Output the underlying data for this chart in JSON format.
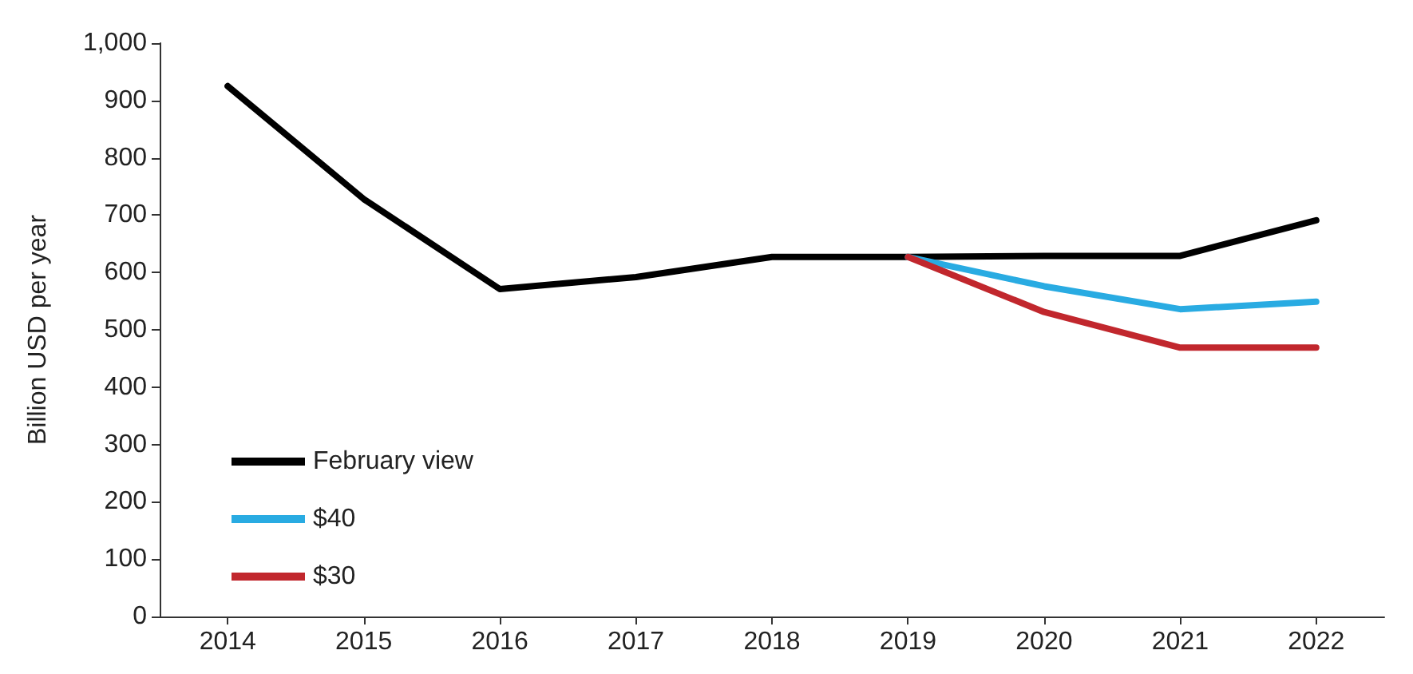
{
  "chart_data": {
    "type": "line",
    "ylabel": "Billion USD per year",
    "categories": [
      "2014",
      "2015",
      "2016",
      "2017",
      "2018",
      "2019",
      "2020",
      "2021",
      "2022"
    ],
    "series": [
      {
        "name": "February view",
        "color": "#000000",
        "values": [
          925,
          728,
          571,
          592,
          627,
          627,
          629,
          629,
          691
        ]
      },
      {
        "name": "$40",
        "color": "#29abe2",
        "values": [
          null,
          null,
          null,
          null,
          null,
          627,
          576,
          536,
          549
        ]
      },
      {
        "name": "$30",
        "color": "#c1272d",
        "values": [
          null,
          null,
          null,
          null,
          null,
          627,
          531,
          469,
          469
        ]
      }
    ],
    "ylim": [
      0,
      1000
    ],
    "yticks": [
      {
        "value": 0,
        "label": "0"
      },
      {
        "value": 100,
        "label": "100"
      },
      {
        "value": 200,
        "label": "200"
      },
      {
        "value": 300,
        "label": "300"
      },
      {
        "value": 400,
        "label": "400"
      },
      {
        "value": 500,
        "label": "500"
      },
      {
        "value": 600,
        "label": "600"
      },
      {
        "value": 700,
        "label": "700"
      },
      {
        "value": 800,
        "label": "800"
      },
      {
        "value": 900,
        "label": "900"
      },
      {
        "value": 1000,
        "label": "1,000"
      }
    ],
    "grid": false,
    "legend": "bottom left",
    "marker": "none",
    "line_style": "solid"
  }
}
